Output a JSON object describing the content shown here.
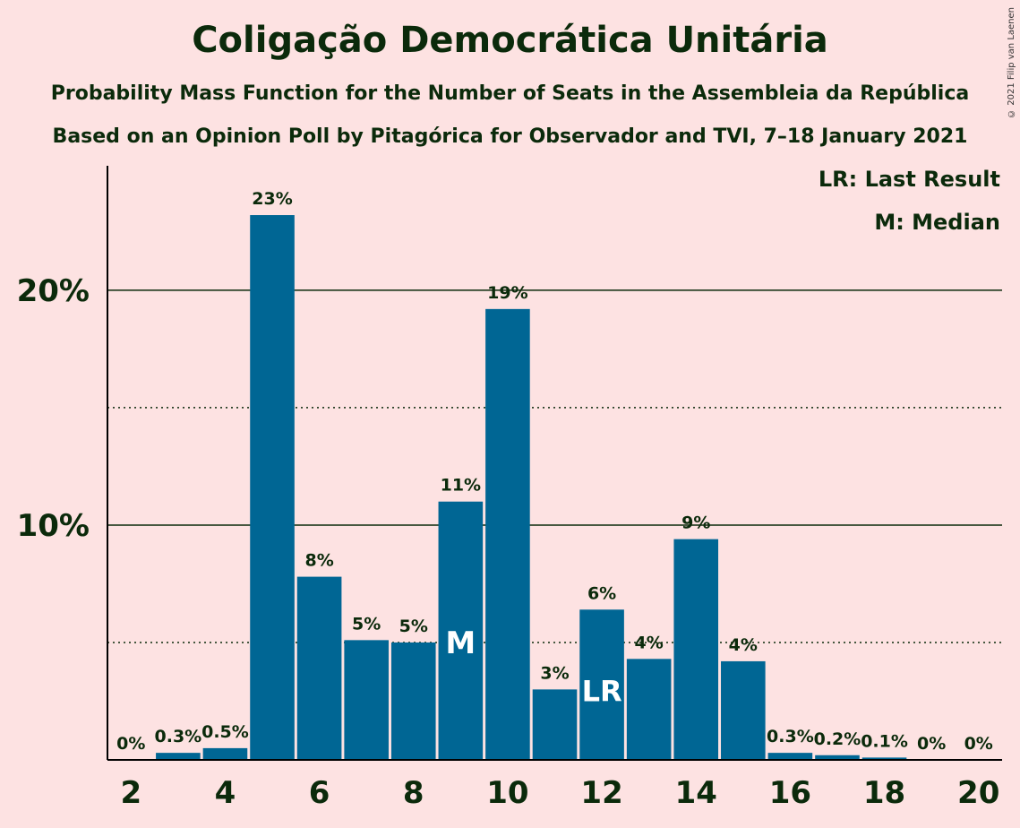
{
  "title": "Coligação Democrática Unitária",
  "subtitle1": "Probability Mass Function for the Number of Seats in the Assembleia da República",
  "subtitle2": "Based on an Opinion Poll by Pitagórica for Observador and TVI, 7–18 January 2021",
  "copyright": "© 2021 Filip van Laenen",
  "legend": {
    "last_result": "LR: Last Result",
    "median": "M: Median"
  },
  "colors": {
    "bar": "#006694",
    "background": "#fde2e2",
    "text": "#0b2a0b"
  },
  "chart_data": {
    "type": "bar",
    "x": [
      2,
      3,
      4,
      5,
      6,
      7,
      8,
      9,
      10,
      11,
      12,
      13,
      14,
      15,
      16,
      17,
      18,
      19,
      20
    ],
    "values": [
      0,
      0.3,
      0.5,
      23.2,
      7.8,
      5.1,
      5.0,
      11.0,
      19.2,
      3.0,
      6.4,
      4.3,
      9.4,
      4.2,
      0.3,
      0.2,
      0.1,
      0,
      0
    ],
    "labels": [
      "0%",
      "0.3%",
      "0.5%",
      "23%",
      "8%",
      "5%",
      "5%",
      "11%",
      "19%",
      "3%",
      "6%",
      "4%",
      "9%",
      "4%",
      "0.3%",
      "0.2%",
      "0.1%",
      "0%",
      "0%"
    ],
    "x_tick_labels": [
      "2",
      "4",
      "6",
      "8",
      "10",
      "12",
      "14",
      "16",
      "18",
      "20"
    ],
    "x_tick_values": [
      2,
      4,
      6,
      8,
      10,
      12,
      14,
      16,
      18,
      20
    ],
    "y_tick_labels": [
      "10%",
      "20%"
    ],
    "y_tick_values": [
      10,
      20
    ],
    "ylim": [
      0,
      25.3
    ],
    "xlim": [
      1.5,
      20.5
    ],
    "gridlines_solid": [
      10,
      20
    ],
    "gridlines_dotted": [
      5,
      15
    ],
    "median": 9,
    "median_label": "M",
    "last_result": 12,
    "last_result_label": "LR"
  }
}
